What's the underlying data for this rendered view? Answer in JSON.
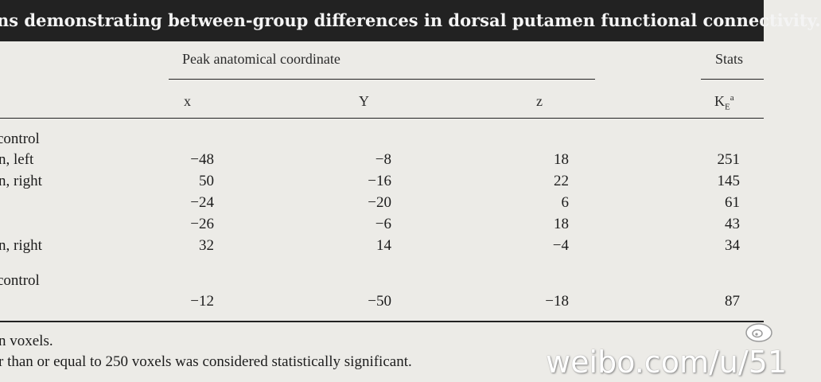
{
  "title": "ns demonstrating between-group differences in dorsal putamen functional connectivity.",
  "headers": {
    "group_coord": "Peak anatomical coordinate",
    "group_stats": "Stats",
    "x": "x",
    "y": "Y",
    "z": "z",
    "ke_main": "K",
    "ke_sub": "E",
    "ke_sup": "a"
  },
  "sections": [
    {
      "label": "control",
      "rows": [
        {
          "region": "n, left",
          "x": "−48",
          "y": "−8",
          "z": "18",
          "ke": "251"
        },
        {
          "region": "n, right",
          "x": "50",
          "y": "−16",
          "z": "22",
          "ke": "145"
        },
        {
          "region": "",
          "x": "−24",
          "y": "−20",
          "z": "6",
          "ke": "61"
        },
        {
          "region": "",
          "x": "−26",
          "y": "−6",
          "z": "18",
          "ke": "43"
        },
        {
          "region": "n, right",
          "x": "32",
          "y": "14",
          "z": "−4",
          "ke": "34"
        }
      ]
    },
    {
      "label": "control",
      "rows": [
        {
          "region": "",
          "x": "−12",
          "y": "−50",
          "z": "−18",
          "ke": "87"
        }
      ]
    }
  ],
  "footnotes": [
    "n voxels.",
    "r than or equal to 250 voxels was considered statistically significant."
  ],
  "watermark": "weibo.com/u/51"
}
